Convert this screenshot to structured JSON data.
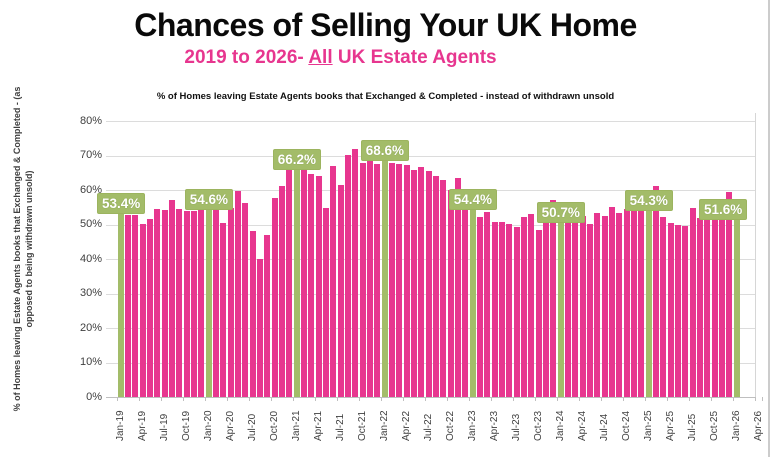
{
  "page": {
    "title": "Chances of Selling Your UK Home",
    "subtitle_prefix": "2019 to 2026- ",
    "subtitle_all": "All",
    "subtitle_suffix": " UK Estate Agents",
    "chart_note": "% of Homes leaving Estate Agents books that Exchanged & Completed - instead of withdrawn unsold"
  },
  "chart_data": {
    "type": "bar",
    "title": "Chances of Selling Your UK Home",
    "subtitle": "2019 to 2026- All UK Estate Agents",
    "note": "% of Homes leaving Estate Agents books that Exchanged & Completed - instead of withdrawn unsold",
    "ylabel_line1": "% of Homes leaving Estate Agents books that Exchanged & Completed - (as",
    "ylabel_line2": "opposed to being withdrawn unsold)",
    "ylim": [
      0,
      80
    ],
    "y_ticks": [
      "0%",
      "10%",
      "20%",
      "30%",
      "40%",
      "50%",
      "60%",
      "70%",
      "80%"
    ],
    "grid": true,
    "bar_color": "#e7368f",
    "highlight_color": "#a3bc69",
    "categories": [
      "Jan-19",
      "Feb-19",
      "Mar-19",
      "Apr-19",
      "May-19",
      "Jun-19",
      "Jul-19",
      "Aug-19",
      "Sep-19",
      "Oct-19",
      "Nov-19",
      "Dec-19",
      "Jan-20",
      "Feb-20",
      "Mar-20",
      "Apr-20",
      "May-20",
      "Jun-20",
      "Jul-20",
      "Aug-20",
      "Sep-20",
      "Oct-20",
      "Nov-20",
      "Dec-20",
      "Jan-21",
      "Feb-21",
      "Mar-21",
      "Apr-21",
      "May-21",
      "Jun-21",
      "Jul-21",
      "Aug-21",
      "Sep-21",
      "Oct-21",
      "Nov-21",
      "Dec-21",
      "Jan-22",
      "Feb-22",
      "Mar-22",
      "Apr-22",
      "May-22",
      "Jun-22",
      "Jul-22",
      "Aug-22",
      "Sep-22",
      "Oct-22",
      "Nov-22",
      "Dec-22",
      "Jan-23",
      "Feb-23",
      "Mar-23",
      "Apr-23",
      "May-23",
      "Jun-23",
      "Jul-23",
      "Aug-23",
      "Sep-23",
      "Oct-23",
      "Nov-23",
      "Dec-23",
      "Jan-24",
      "Feb-24",
      "Mar-24",
      "Apr-24",
      "May-24",
      "Jun-24",
      "Jul-24",
      "Aug-24",
      "Sep-24",
      "Oct-24",
      "Nov-24",
      "Dec-24",
      "Jan-25",
      "Feb-25",
      "Mar-25",
      "Apr-25",
      "May-25",
      "Jun-25",
      "Jul-25",
      "Aug-25",
      "Sep-25",
      "Oct-25",
      "Nov-25",
      "Dec-25",
      "Jan-26"
    ],
    "values": [
      53.4,
      52.8,
      52.8,
      50.1,
      51.6,
      54.6,
      54.1,
      57.1,
      54.6,
      53.8,
      53.8,
      54.1,
      54.6,
      54.5,
      50.4,
      54.9,
      59.7,
      56.3,
      48.1,
      40.0,
      47.0,
      57.7,
      61.3,
      66.4,
      66.2,
      66.3,
      64.7,
      64.0,
      54.8,
      67.0,
      61.5,
      70.2,
      72.0,
      67.8,
      68.3,
      67.5,
      68.6,
      67.8,
      67.6,
      67.3,
      65.7,
      66.7,
      65.5,
      64.2,
      62.8,
      60.0,
      63.5,
      55.0,
      54.4,
      52.3,
      53.5,
      50.8,
      50.8,
      50.1,
      49.4,
      52.1,
      53.1,
      48.5,
      53.5,
      57.0,
      50.7,
      51.8,
      52.6,
      52.4,
      50.1,
      53.4,
      52.6,
      55.1,
      53.2,
      54.4,
      54.4,
      54.0,
      54.3,
      61.2,
      52.1,
      50.5,
      49.9,
      49.6,
      54.9,
      51.9,
      52.3,
      52.3,
      53.0,
      59.5,
      51.6
    ],
    "highlights": [
      {
        "index": 0,
        "label": "53.4%"
      },
      {
        "index": 12,
        "label": "54.6%"
      },
      {
        "index": 24,
        "label": "66.2%"
      },
      {
        "index": 36,
        "label": "68.6%"
      },
      {
        "index": 48,
        "label": "54.4%"
      },
      {
        "index": 60,
        "label": "50.7%"
      },
      {
        "index": 72,
        "label": "54.3%"
      },
      {
        "index": 84,
        "label": "51.6%"
      }
    ],
    "axis_extra_categories": [
      "Feb-26",
      "Mar-26",
      "Apr-26"
    ],
    "x_tick_labels": [
      "Jan-19",
      "Apr-19",
      "Jul-19",
      "Oct-19",
      "Jan-20",
      "Apr-20",
      "Jul-20",
      "Oct-20",
      "Jan-21",
      "Apr-21",
      "Jul-21",
      "Oct-21",
      "Jan-22",
      "Apr-22",
      "Jul-22",
      "Oct-22",
      "Jan-23",
      "Apr-23",
      "Jul-23",
      "Oct-23",
      "Jan-24",
      "Apr-24",
      "Jul-24",
      "Oct-24",
      "Jan-25",
      "Apr-25",
      "Jul-25",
      "Oct-25",
      "Jan-26",
      "Apr-26"
    ],
    "legend": null
  }
}
